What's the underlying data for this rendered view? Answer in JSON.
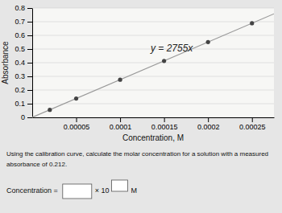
{
  "chart_data": {
    "type": "scatter",
    "xlabel": "Concentration, M",
    "ylabel": "Absorbance",
    "xlim": [
      0,
      0.000275
    ],
    "ylim": [
      0,
      0.8
    ],
    "xticks": [
      5e-05,
      0.0001,
      0.00015,
      0.0002,
      0.00025
    ],
    "yticks": [
      0,
      0.1,
      0.2,
      0.3,
      0.4,
      0.5,
      0.6,
      0.7,
      0.8
    ],
    "grid": true,
    "series": [
      {
        "type": "line",
        "color": "#999999",
        "x": [
          0,
          0.000275
        ],
        "values": [
          0,
          0.757625
        ]
      },
      {
        "type": "scatter",
        "color": "#444444",
        "x": [
          2e-05,
          5e-05,
          0.0001,
          0.00015,
          0.0002,
          0.00025
        ],
        "values": [
          0.055,
          0.138,
          0.2755,
          0.413,
          0.551,
          0.68875
        ]
      }
    ],
    "annotations": [
      "y = 2755x",
      "Using the calibration curve, calculate the molar concentration for a solution with a measured",
      "absorbance of 0.212.",
      "Concentration =",
      "× 10",
      "M"
    ]
  }
}
